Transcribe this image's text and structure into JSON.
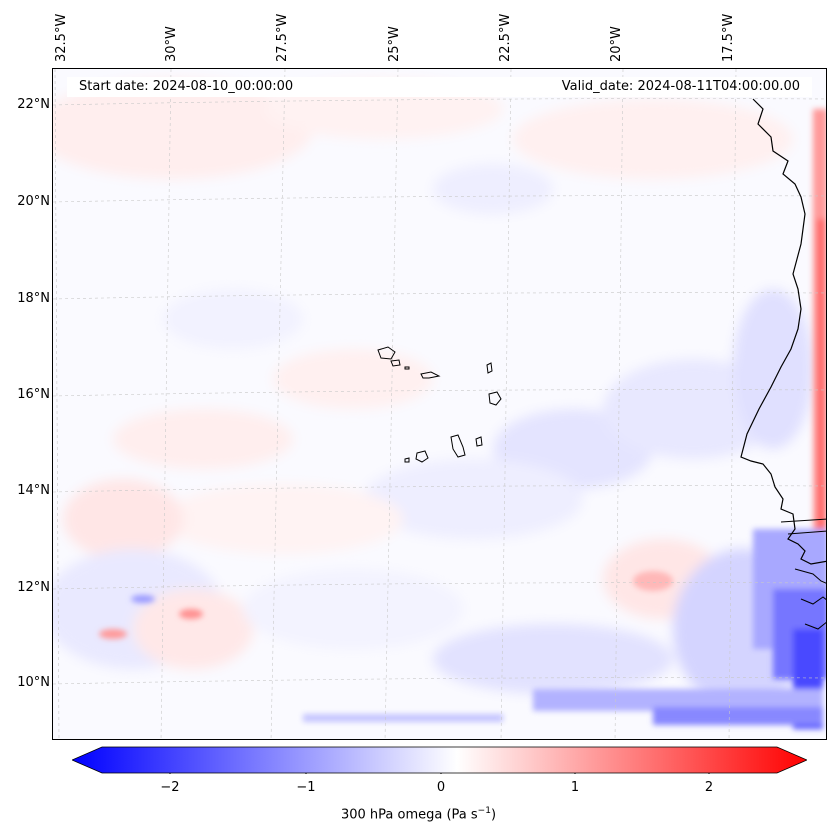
{
  "map": {
    "start_date": "Start date: 2024-08-10_00:00:00",
    "valid_date": "Valid_date: 2024-08-11T04:00:00.00",
    "lon_labels": [
      "32.5°W",
      "30°W",
      "27.5°W",
      "25°W",
      "22.5°W",
      "20°W",
      "17.5°W"
    ],
    "lat_labels": [
      "22°N",
      "20°N",
      "18°N",
      "16°N",
      "14°N",
      "12°N",
      "10°N"
    ],
    "colors": {
      "negative": "#0000ff",
      "neutral": "#ffffff",
      "positive": "#ff0000",
      "coast": "#000000",
      "grid": "#bbbbbb"
    }
  },
  "colorbar": {
    "ticks": [
      "−2",
      "−1",
      "0",
      "1",
      "2"
    ],
    "label_text": "300 hPa omega (Pa s",
    "label_sup": "−1",
    "label_close": ")",
    "range": [
      -2.75,
      2.5
    ]
  }
}
